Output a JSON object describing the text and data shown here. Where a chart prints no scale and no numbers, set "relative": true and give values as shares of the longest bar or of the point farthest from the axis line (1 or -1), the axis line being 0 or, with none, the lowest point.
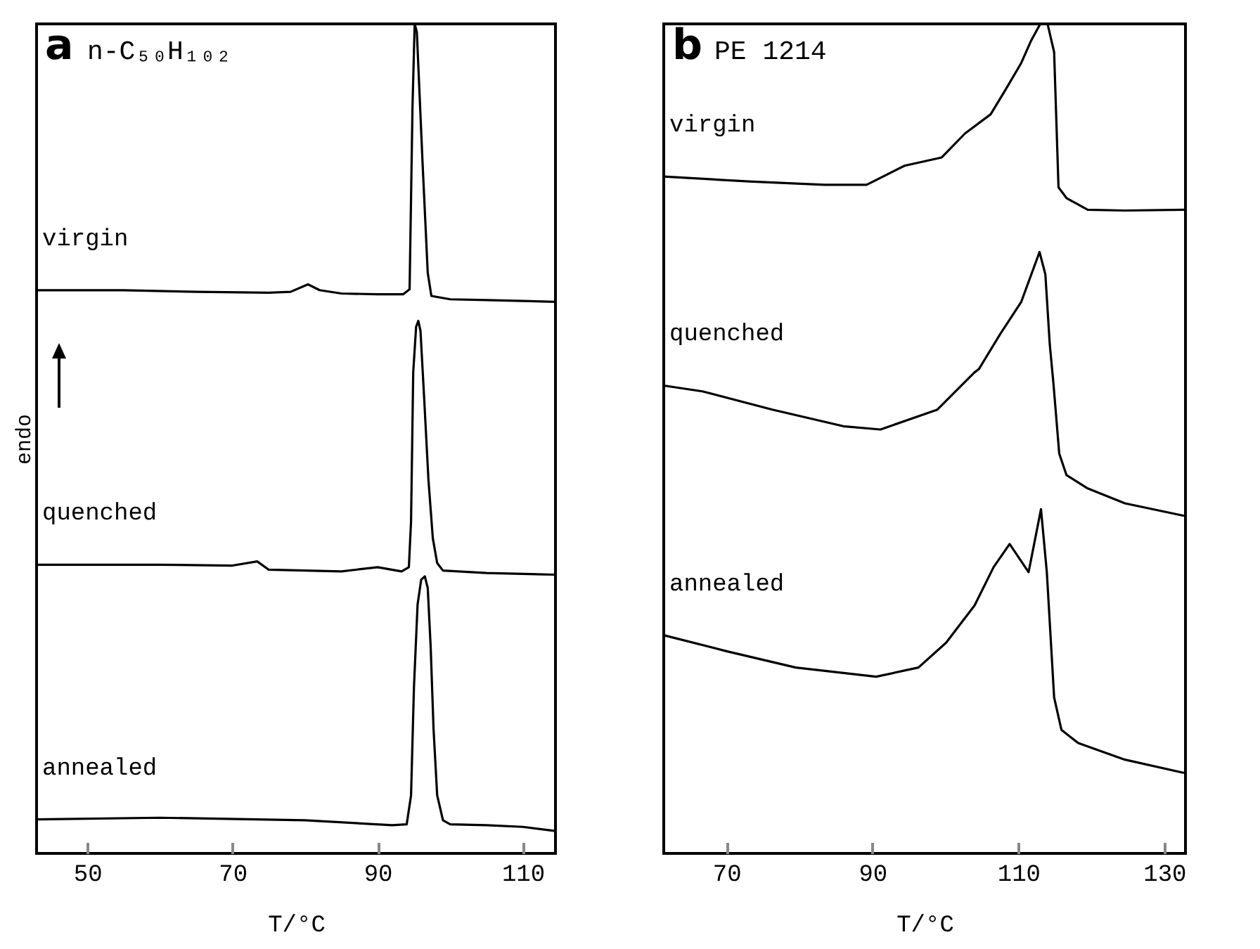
{
  "chart_data": [
    {
      "type": "line",
      "title": "a",
      "subtitle": "n-C₅₀H₁₀₂",
      "xlabel": "T/°C",
      "ylabel": "endo",
      "relative": true,
      "xlim": [
        43,
        114.5
      ],
      "xticks": [
        50,
        70,
        90,
        110
      ],
      "series": [
        {
          "name": "virgin",
          "color": "#000000",
          "x": [
            43,
            55,
            65,
            75,
            78,
            80.4,
            82,
            85,
            90,
            93.5,
            94.4,
            94.8,
            95.1,
            95.4,
            96.2,
            96.9,
            97.4,
            100,
            105,
            110,
            114.5
          ],
          "values": [
            0.679,
            0.679,
            0.677,
            0.676,
            0.677,
            0.686,
            0.679,
            0.675,
            0.674,
            0.674,
            0.68,
            0.9,
            1.0,
            0.99,
            0.83,
            0.7,
            0.672,
            0.668,
            0.667,
            0.666,
            0.665
          ]
        },
        {
          "name": "quenched",
          "color": "#000000",
          "x": [
            43,
            60,
            70,
            73.4,
            75,
            85,
            90,
            93.3,
            94.3,
            94.6,
            94.9,
            95.3,
            95.6,
            95.9,
            96.4,
            97,
            97.6,
            98.2,
            99,
            105,
            114.5
          ],
          "values": [
            0.348,
            0.348,
            0.347,
            0.352,
            0.342,
            0.34,
            0.345,
            0.34,
            0.345,
            0.4,
            0.58,
            0.635,
            0.642,
            0.63,
            0.55,
            0.45,
            0.38,
            0.35,
            0.341,
            0.338,
            0.336
          ]
        },
        {
          "name": "annealed",
          "color": "#000000",
          "x": [
            43,
            60,
            80,
            92,
            94,
            94.6,
            95,
            95.5,
            96,
            96.5,
            96.9,
            97.3,
            97.7,
            98.2,
            99,
            100,
            105,
            110,
            114.5
          ],
          "values": [
            0.041,
            0.043,
            0.04,
            0.034,
            0.035,
            0.07,
            0.2,
            0.3,
            0.33,
            0.334,
            0.32,
            0.25,
            0.15,
            0.07,
            0.04,
            0.035,
            0.034,
            0.032,
            0.027
          ]
        }
      ]
    },
    {
      "type": "line",
      "title": "b",
      "subtitle": "PE 1214",
      "xlabel": "T/°C",
      "relative": true,
      "xlim": [
        61.4,
        132.9
      ],
      "xticks": [
        70,
        90,
        110,
        130
      ],
      "series": [
        {
          "name": "virgin",
          "color": "#000000",
          "x": [
            61.4,
            73.1,
            83.4,
            89.2,
            94.4,
            99.5,
            102.7,
            106.2,
            108.2,
            110.4,
            111.7,
            113,
            114,
            114.9,
            115.5,
            116.6,
            119.5,
            124.6,
            132.7
          ],
          "values": [
            0.816,
            0.81,
            0.806,
            0.806,
            0.829,
            0.839,
            0.868,
            0.891,
            0.92,
            0.953,
            0.979,
            1.0,
            1.0,
            0.966,
            0.803,
            0.79,
            0.776,
            0.775,
            0.776
          ]
        },
        {
          "name": "quenched",
          "color": "#000000",
          "x": [
            61.4,
            66.7,
            76.3,
            86,
            91.1,
            98.9,
            101.4,
            104,
            104.6,
            107.5,
            110.4,
            112.9,
            113.7,
            114.3,
            114.8,
            115.6,
            116.6,
            119.5,
            124.6,
            132.7
          ],
          "values": [
            0.564,
            0.557,
            0.535,
            0.515,
            0.511,
            0.535,
            0.557,
            0.58,
            0.584,
            0.626,
            0.665,
            0.725,
            0.698,
            0.614,
            0.567,
            0.482,
            0.456,
            0.44,
            0.422,
            0.407
          ]
        },
        {
          "name": "annealed",
          "color": "#000000",
          "x": [
            61.4,
            69.9,
            79.5,
            90.5,
            96.3,
            100.1,
            104,
            106.6,
            108.8,
            111.4,
            113.1,
            113.9,
            114.9,
            115.9,
            118.2,
            124.6,
            132.7
          ],
          "values": [
            0.263,
            0.244,
            0.224,
            0.213,
            0.224,
            0.254,
            0.299,
            0.345,
            0.373,
            0.339,
            0.415,
            0.339,
            0.188,
            0.149,
            0.133,
            0.113,
            0.097
          ]
        }
      ]
    }
  ]
}
